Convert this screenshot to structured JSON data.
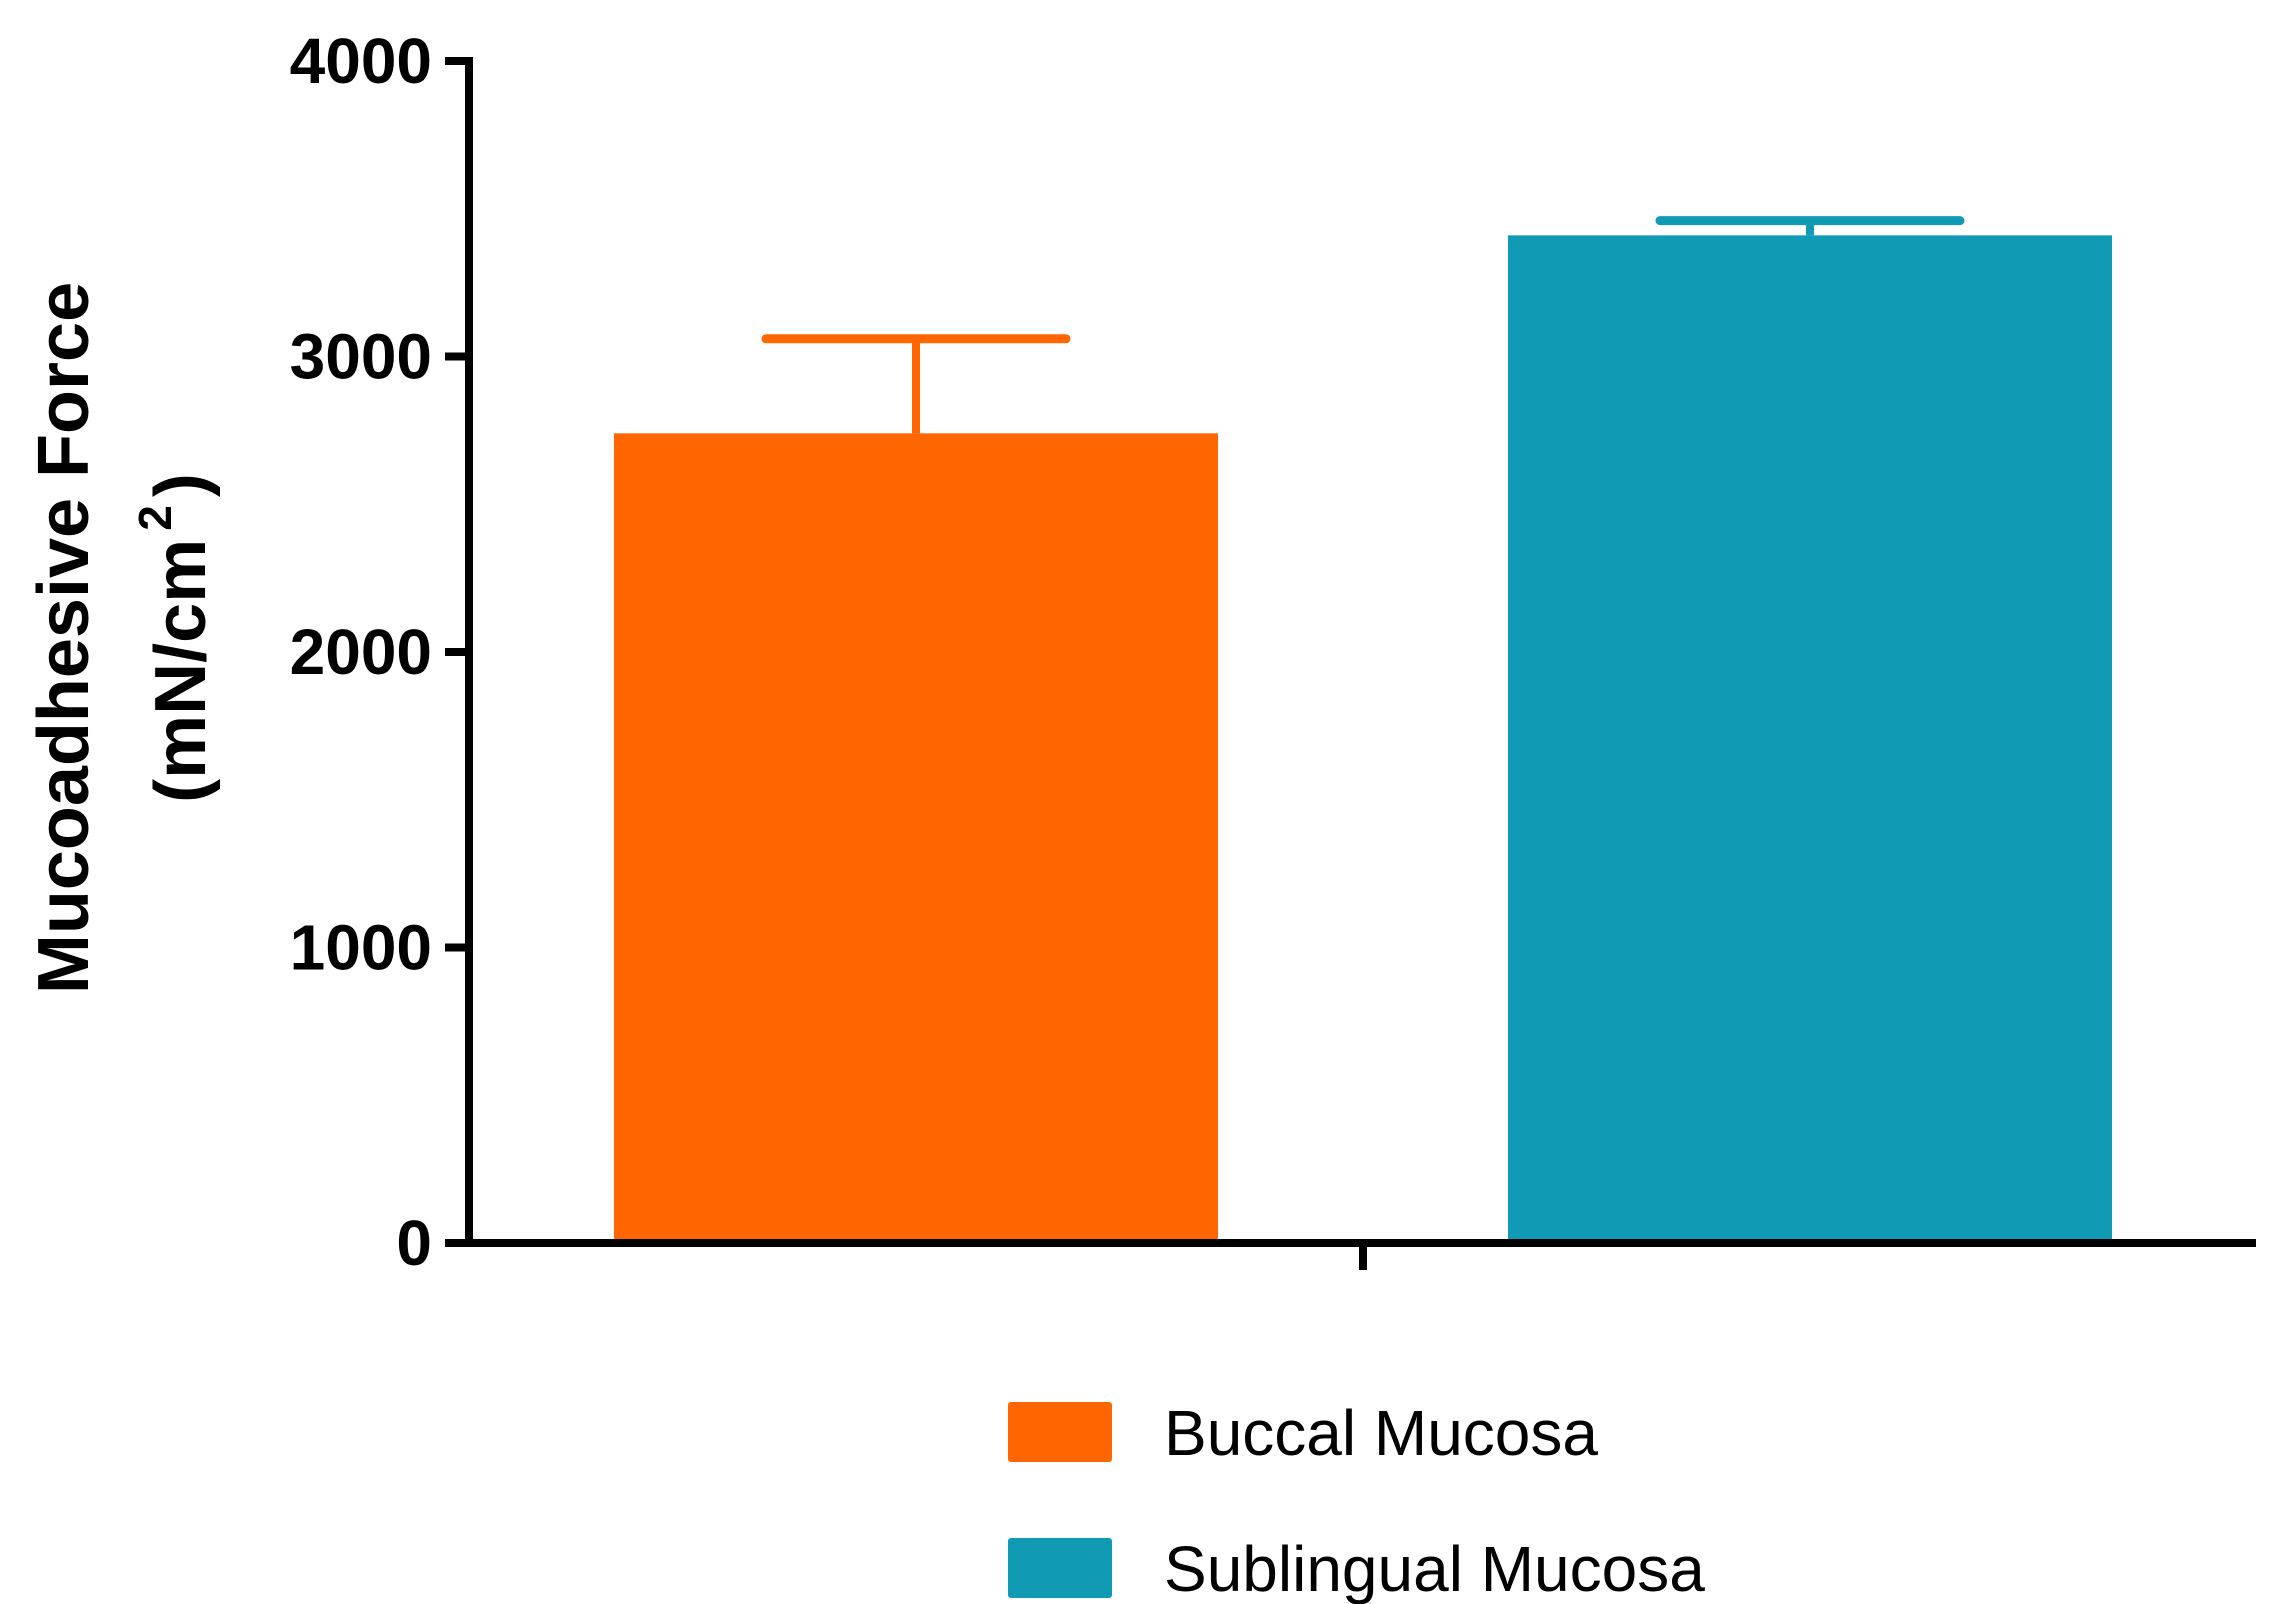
{
  "chart_data": {
    "type": "bar",
    "categories": [
      "Buccal Mucosa",
      "Sublingual Mucosa"
    ],
    "values": [
      2740,
      3410
    ],
    "errors": [
      320,
      50
    ],
    "colors": [
      "#ff6600",
      "#119ab4"
    ],
    "ylabel_line1": "Mucoadhesive Force",
    "ylabel_line2": "(mN/cm",
    "ylabel_sup": "2",
    "ylabel_close": ")",
    "ylim": [
      0,
      4000
    ],
    "yticks": [
      "0",
      "1000",
      "2000",
      "3000",
      "4000"
    ],
    "grid": false,
    "legend_position": "bottom",
    "legend": [
      "Buccal Mucosa",
      "Sublingual Mucosa"
    ]
  }
}
